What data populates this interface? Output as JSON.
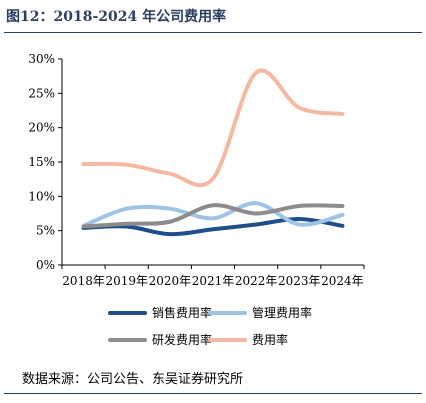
{
  "header": {
    "title": "图12：2018-2024 年公司费用率"
  },
  "footer": {
    "source": "数据来源：公司公告、东吴证券研究所"
  },
  "chart_data": {
    "type": "line",
    "categories": [
      "2018年",
      "2019年",
      "2020年",
      "2021年",
      "2022年",
      "2023年",
      "2024年"
    ],
    "y_ticks": [
      "0%",
      "5%",
      "10%",
      "15%",
      "20%",
      "25%",
      "30%"
    ],
    "ylim": [
      0,
      30
    ],
    "grid": false,
    "legend_position": "bottom",
    "series": [
      {
        "name": "销售费用率",
        "color": "#1f4e8c",
        "values": [
          5.4,
          5.6,
          4.5,
          5.2,
          5.9,
          6.7,
          5.7
        ]
      },
      {
        "name": "管理费用率",
        "color": "#9dc3e6",
        "values": [
          5.7,
          8.2,
          8.2,
          6.8,
          9.0,
          5.9,
          7.3
        ]
      },
      {
        "name": "研发费用率",
        "color": "#8c8c8c",
        "values": [
          5.6,
          6.0,
          6.3,
          8.7,
          7.5,
          8.6,
          8.6
        ]
      },
      {
        "name": "费用率",
        "color": "#f4b9a0",
        "values": [
          14.7,
          14.6,
          13.3,
          12.6,
          28.0,
          22.9,
          22.0
        ]
      }
    ]
  }
}
